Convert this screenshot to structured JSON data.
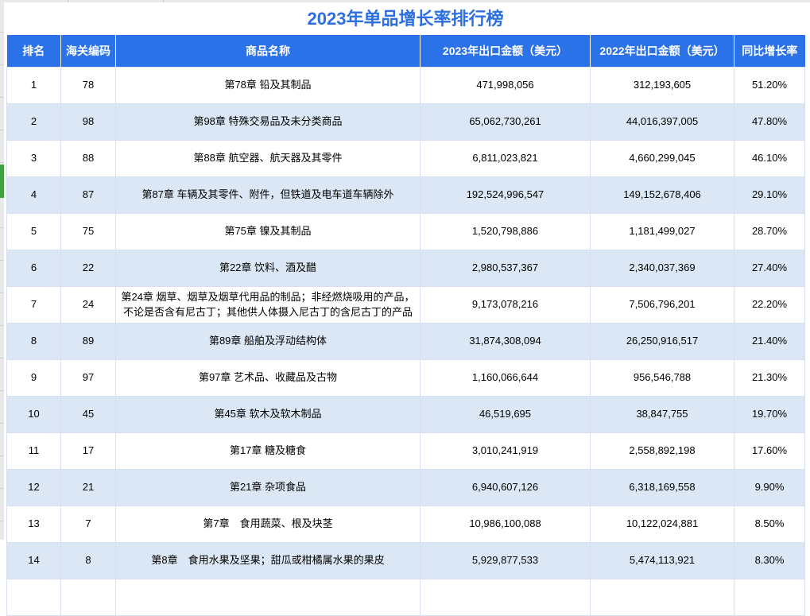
{
  "title": "2023年单品增长率排行榜",
  "table": {
    "headers": [
      "排名",
      "海关编码",
      "商品名称",
      "2023年出口金额（美元）",
      "2022年出口金额（美元）",
      "同比增长率"
    ],
    "rows": [
      {
        "rank": "1",
        "code": "78",
        "name": "第78章 铅及其制品",
        "amt2023": "471,998,056",
        "amt2022": "312,193,605",
        "growth": "51.20%"
      },
      {
        "rank": "2",
        "code": "98",
        "name": "第98章 特殊交易品及未分类商品",
        "amt2023": "65,062,730,261",
        "amt2022": "44,016,397,005",
        "growth": "47.80%"
      },
      {
        "rank": "3",
        "code": "88",
        "name": "第88章 航空器、航天器及其零件",
        "amt2023": "6,811,023,821",
        "amt2022": "4,660,299,045",
        "growth": "46.10%"
      },
      {
        "rank": "4",
        "code": "87",
        "name": "第87章 车辆及其零件、附件，但铁道及电车道车辆除外",
        "amt2023": "192,524,996,547",
        "amt2022": "149,152,678,406",
        "growth": "29.10%"
      },
      {
        "rank": "5",
        "code": "75",
        "name": "第75章 镍及其制品",
        "amt2023": "1,520,798,886",
        "amt2022": "1,181,499,027",
        "growth": "28.70%"
      },
      {
        "rank": "6",
        "code": "22",
        "name": "第22章 饮料、酒及醋",
        "amt2023": "2,980,537,367",
        "amt2022": "2,340,037,369",
        "growth": "27.40%"
      },
      {
        "rank": "7",
        "code": "24",
        "name": "第24章 烟草、烟草及烟草代用品的制品；非经燃烧吸用的产品，不论是否含有尼古丁；其他供人体摄入尼古丁的含尼古丁的产品",
        "amt2023": "9,173,078,216",
        "amt2022": "7,506,796,201",
        "growth": "22.20%"
      },
      {
        "rank": "8",
        "code": "89",
        "name": "第89章 船舶及浮动结构体",
        "amt2023": "31,874,308,094",
        "amt2022": "26,250,916,517",
        "growth": "21.40%"
      },
      {
        "rank": "9",
        "code": "97",
        "name": "第97章 艺术品、收藏品及古物",
        "amt2023": "1,160,066,644",
        "amt2022": "956,546,788",
        "growth": "21.30%"
      },
      {
        "rank": "10",
        "code": "45",
        "name": "第45章 软木及软木制品",
        "amt2023": "46,519,695",
        "amt2022": "38,847,755",
        "growth": "19.70%"
      },
      {
        "rank": "11",
        "code": "17",
        "name": "第17章 糖及糖食",
        "amt2023": "3,010,241,919",
        "amt2022": "2,558,892,198",
        "growth": "17.60%"
      },
      {
        "rank": "12",
        "code": "21",
        "name": "第21章 杂项食品",
        "amt2023": "6,940,607,126",
        "amt2022": "6,318,169,558",
        "growth": "9.90%"
      },
      {
        "rank": "13",
        "code": "7",
        "name": "第7章　食用蔬菜、根及块茎",
        "amt2023": "10,986,100,088",
        "amt2022": "10,122,024,881",
        "growth": "8.50%"
      },
      {
        "rank": "14",
        "code": "8",
        "name": "第8章　食用水果及坚果；甜瓜或柑橘属水果的果皮",
        "amt2023": "5,929,877,533",
        "amt2022": "5,474,113,921",
        "growth": "8.30%"
      }
    ]
  },
  "colors": {
    "title_text": "#2c6fe0",
    "header_bg": "#2b71e8",
    "header_text": "#ffffff",
    "row_alt_bg": "#dbe7f4",
    "grid_line": "#d6e0ee",
    "highlight_marker": "#3ea03e",
    "edge_strip": "#e9e9e9"
  }
}
